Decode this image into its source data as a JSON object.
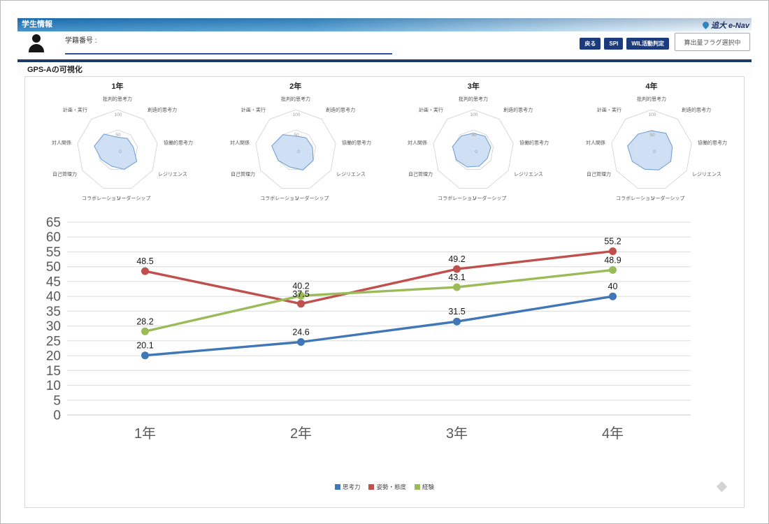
{
  "header": {
    "title": "学生情報",
    "logo_text": "追大 e-Nav",
    "student_id_label": "学籍番号 :",
    "student_id_value": ""
  },
  "toolbar": {
    "back_label": "戻る",
    "spi_label": "SPI",
    "wil_label": "WIL活動判定",
    "flag_label": "算出量フラグ選択中"
  },
  "section_title": "GPS-Aの可視化",
  "icons": {
    "person": "person-silhouette",
    "logo_swoosh": "blue-swoosh",
    "diamond": "gray-diamond"
  },
  "colors": {
    "accent_navy": "#1b3b7c",
    "divider_navy": "#203a66",
    "radar_fill": "#c9dcf3",
    "radar_stroke": "#6b9bd2",
    "grid_gray": "#dcdcdc",
    "axis_text": "#595959",
    "series_blue": "#4077b6",
    "series_red": "#c0504d",
    "series_green": "#9bbb59"
  },
  "chart_data": [
    {
      "type": "radar",
      "title": "1年",
      "max": 100,
      "ticks": [
        0,
        50,
        100
      ],
      "axes": [
        "批判的思考力",
        "創造的思考力",
        "協働的思考力",
        "レジリエンス",
        "リーダーシップ",
        "コラボレーション",
        "自己管理力",
        "対人関係",
        "計画・実行"
      ],
      "values": [
        32,
        38,
        40,
        55,
        50,
        42,
        46,
        58,
        52
      ]
    },
    {
      "type": "radar",
      "title": "2年",
      "max": 100,
      "ticks": [
        0,
        50,
        100
      ],
      "axes": [
        "批判的思考力",
        "創造的思考力",
        "協働的思考力",
        "レジリエンス",
        "リーダーシップ",
        "コラボレーション",
        "自己管理力",
        "対人関係",
        "計画・実行"
      ],
      "values": [
        35,
        40,
        42,
        50,
        52,
        44,
        50,
        60,
        50
      ]
    },
    {
      "type": "radar",
      "title": "3年",
      "max": 100,
      "ticks": [
        0,
        50,
        100
      ],
      "axes": [
        "批判的思考力",
        "創造的思考力",
        "協働的思考力",
        "レジリエンス",
        "リーダーシップ",
        "コラボレーション",
        "自己管理力",
        "対人関係",
        "計画・実行"
      ],
      "values": [
        42,
        45,
        44,
        40,
        42,
        44,
        48,
        52,
        46
      ]
    },
    {
      "type": "radar",
      "title": "4年",
      "max": 100,
      "ticks": [
        0,
        50,
        100
      ],
      "axes": [
        "批判的思考力",
        "創造的思考力",
        "協働的思考力",
        "レジリエンス",
        "リーダーシップ",
        "コラボレーション",
        "自己管理力",
        "対人関係",
        "計画・実行"
      ],
      "values": [
        48,
        55,
        52,
        55,
        52,
        50,
        55,
        60,
        52
      ]
    },
    {
      "type": "line",
      "categories": [
        "1年",
        "2年",
        "3年",
        "4年"
      ],
      "ylim": [
        0,
        65
      ],
      "ytick_step": 5,
      "grid": true,
      "legend_position": "bottom",
      "series": [
        {
          "name": "思考力",
          "color": "#4077b6",
          "values": [
            20.1,
            24.6,
            31.5,
            40
          ]
        },
        {
          "name": "姿勢・態度",
          "color": "#c0504d",
          "values": [
            48.5,
            37.5,
            49.2,
            55.2
          ]
        },
        {
          "name": "経験",
          "color": "#9bbb59",
          "values": [
            28.2,
            40.2,
            43.1,
            48.9
          ]
        }
      ]
    }
  ]
}
